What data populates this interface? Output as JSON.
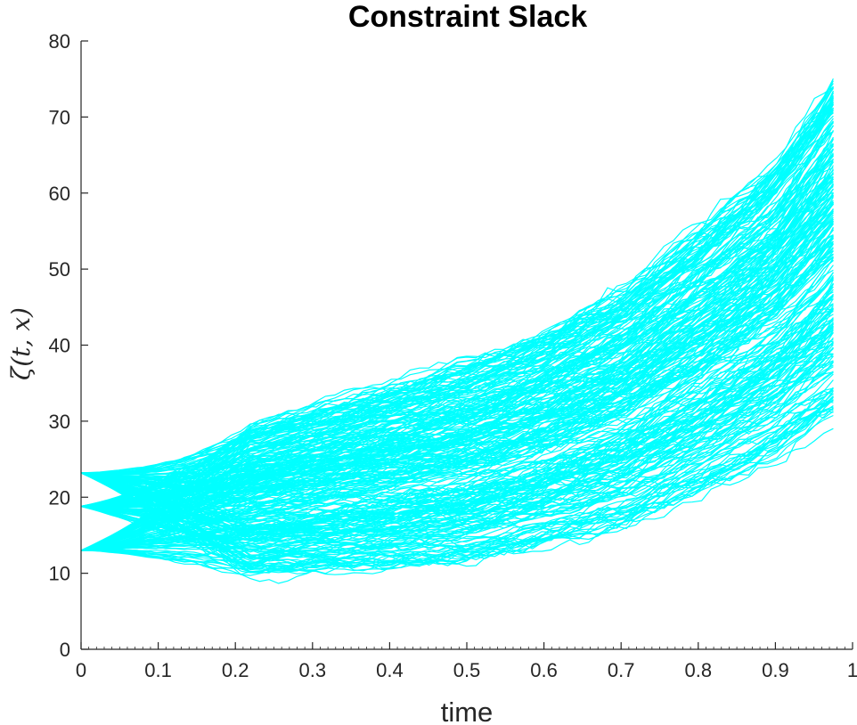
{
  "chart_data": {
    "type": "line",
    "title": "Constraint Slack",
    "xlabel": "time",
    "ylabel": "ζ(t, x)",
    "xlim": [
      0,
      1
    ],
    "ylim": [
      0,
      80
    ],
    "xticks": [
      "0",
      "0.1",
      "0.2",
      "0.3",
      "0.4",
      "0.5",
      "0.6",
      "0.7",
      "0.8",
      "0.9",
      "1"
    ],
    "yticks": [
      "0",
      "10",
      "20",
      "30",
      "40",
      "50",
      "60",
      "70",
      "80"
    ],
    "grid": false,
    "legend": "none",
    "line_color": "#00ffff",
    "axis_color": "#262626",
    "series_description": "Many simulated trajectories fanning out from three starting values",
    "start_values": [
      13,
      18.8,
      23.2
    ],
    "envelope": {
      "x": [
        0,
        0.1,
        0.2,
        0.3,
        0.4,
        0.5,
        0.6,
        0.7,
        0.8,
        0.9,
        0.975
      ],
      "upper": [
        23.2,
        26,
        28.5,
        31.5,
        34.5,
        37.5,
        41.5,
        47,
        55,
        64,
        75
      ],
      "lower": [
        13,
        11,
        10.2,
        10.5,
        11,
        12,
        14,
        16.5,
        21,
        26,
        31
      ]
    },
    "trajectory_count": 300
  }
}
